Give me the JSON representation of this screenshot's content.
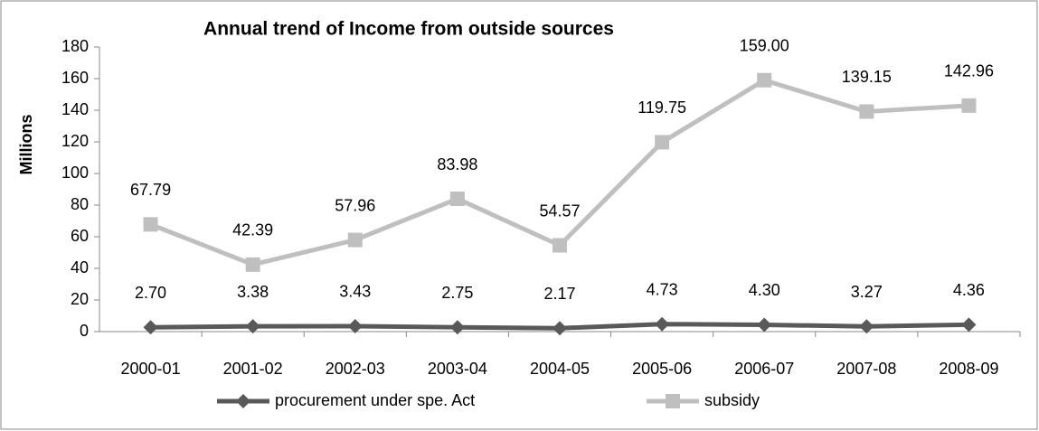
{
  "chart_data": {
    "type": "line",
    "title": "Annual trend of Income from outside sources",
    "y_label": "Millions",
    "categories": [
      "2000-01",
      "2001-02",
      "2002-03",
      "2003-04",
      "2004-05",
      "2005-06",
      "2006-07",
      "2007-08",
      "2008-09"
    ],
    "series": [
      {
        "name": "procurement under spe. Act",
        "color": "#595959",
        "marker": "diamond",
        "values": [
          2.7,
          3.38,
          3.43,
          2.75,
          2.17,
          4.73,
          4.3,
          3.27,
          4.36
        ],
        "value_labels": [
          "2.70",
          "3.38",
          "3.43",
          "2.75",
          "2.17",
          "4.73",
          "4.30",
          "3.27",
          "4.36"
        ]
      },
      {
        "name": "subsidy",
        "color": "#bfbfbf",
        "marker": "square",
        "values": [
          67.79,
          42.39,
          57.96,
          83.98,
          54.57,
          119.75,
          159.0,
          139.15,
          142.96
        ],
        "value_labels": [
          "67.79",
          "42.39",
          "57.96",
          "83.98",
          "54.57",
          "119.75",
          "159.00",
          "139.15",
          "142.96"
        ]
      }
    ],
    "ylim": [
      0,
      180
    ],
    "yticks": [
      0,
      20,
      40,
      60,
      80,
      100,
      120,
      140,
      160,
      180
    ],
    "grid": false,
    "legend": "bottom"
  }
}
